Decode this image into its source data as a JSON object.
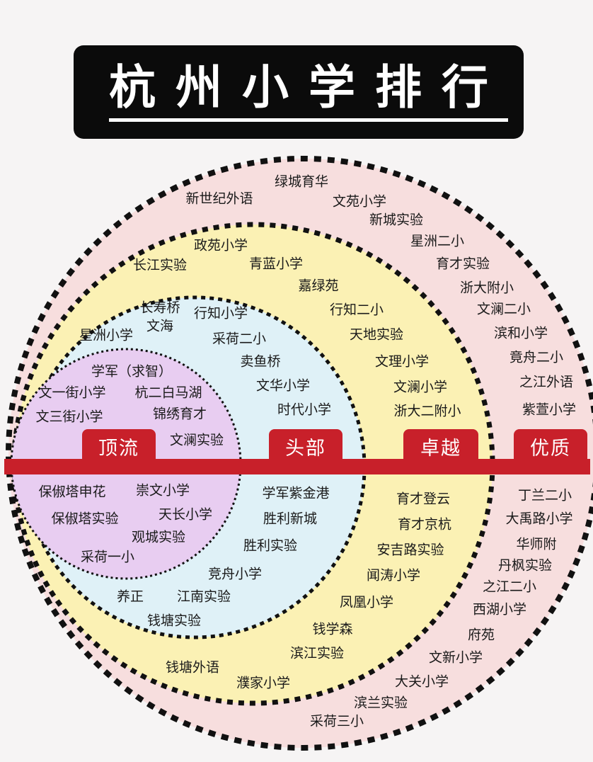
{
  "title": "杭州小学排行",
  "colors": {
    "outer_ring": "#f7dede",
    "middle_ring": "#fbf1b4",
    "inner_ring": "#dff1f7",
    "core": "#e8cdf1",
    "band": "#c8202a",
    "dots": "#111111"
  },
  "tiers": {
    "core": "顶流",
    "inner": "头部",
    "middle": "卓越",
    "outer": "优质"
  },
  "schools": {
    "core": [
      "学军（求智）",
      "文一街小学",
      "杭二白马湖",
      "文三街小学",
      "锦绣育才",
      "文澜实验",
      "保俶塔申花",
      "崇文小学",
      "保俶塔实验",
      "天长小学",
      "观城实验",
      "采荷一小"
    ],
    "inner": [
      "长寿桥",
      "行知小学",
      "文海",
      "星洲小学",
      "采荷二小",
      "卖鱼桥",
      "文华小学",
      "时代小学",
      "学军紫金港",
      "胜利新城",
      "胜利实验",
      "竞舟小学",
      "养正",
      "江南实验",
      "钱塘实验"
    ],
    "middle": [
      "政苑小学",
      "长江实验",
      "青蓝小学",
      "嘉绿苑",
      "行知二小",
      "天地实验",
      "文理小学",
      "文澜小学",
      "浙大二附小",
      "育才登云",
      "育才京杭",
      "安吉路实验",
      "闻涛小学",
      "凤凰小学",
      "钱学森",
      "滨江实验",
      "钱塘外语",
      "濮家小学"
    ],
    "outer": [
      "绿城育华",
      "新世纪外语",
      "文苑小学",
      "新城实验",
      "星洲二小",
      "育才实验",
      "浙大附小",
      "文澜二小",
      "滨和小学",
      "竟舟二小",
      "之江外语",
      "紫萱小学",
      "丁兰二小",
      "大禹路小学",
      "华师附",
      "丹枫实验",
      "之江二小",
      "西湖小学",
      "府苑",
      "文新小学",
      "大关小学",
      "滨兰实验",
      "采荷三小"
    ]
  }
}
